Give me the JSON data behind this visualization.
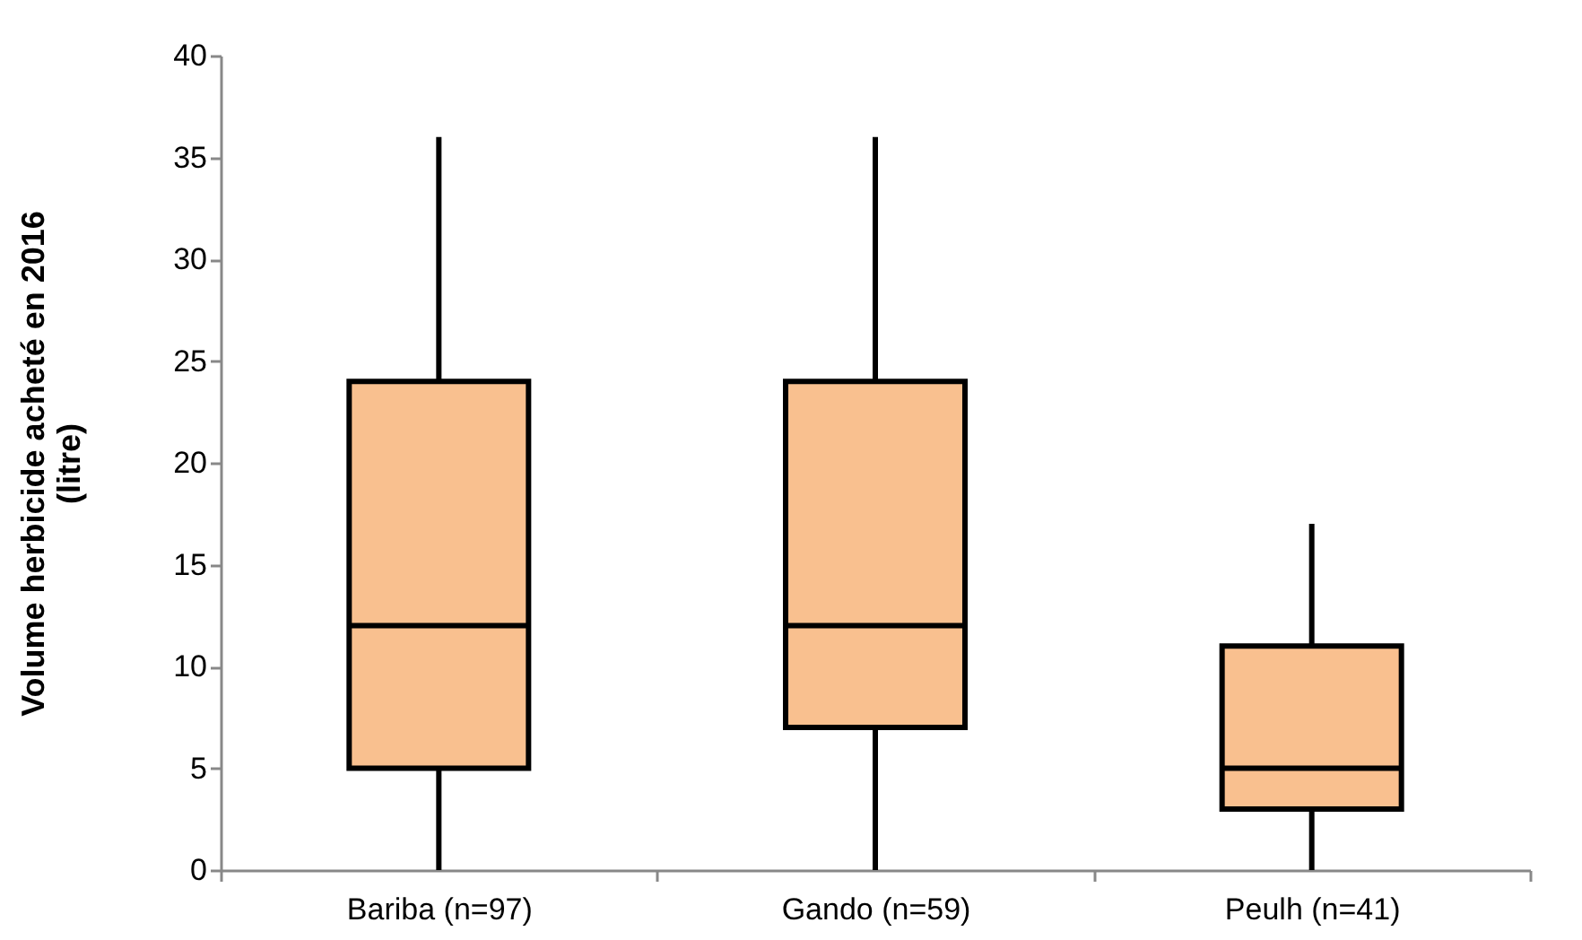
{
  "chart_data": {
    "type": "box",
    "ylabel": "Volume herbicide acheté en 2016\n(litre)",
    "categories": [
      "Bariba (n=97)",
      "Gando (n=59)",
      "Peulh (n=41)"
    ],
    "ylim": [
      0,
      40
    ],
    "yticks": [
      0,
      5,
      10,
      15,
      20,
      25,
      30,
      35,
      40
    ],
    "grid": false,
    "series": [
      {
        "color": "#f9c08f",
        "boxes": [
          {
            "low": 0,
            "q1": 5,
            "median": 12,
            "q3": 24,
            "high": 36
          },
          {
            "low": 0,
            "q1": 7,
            "median": 12,
            "q3": 24,
            "high": 36
          },
          {
            "low": 0,
            "q1": 3,
            "median": 5,
            "q3": 11,
            "high": 17
          }
        ]
      }
    ]
  }
}
